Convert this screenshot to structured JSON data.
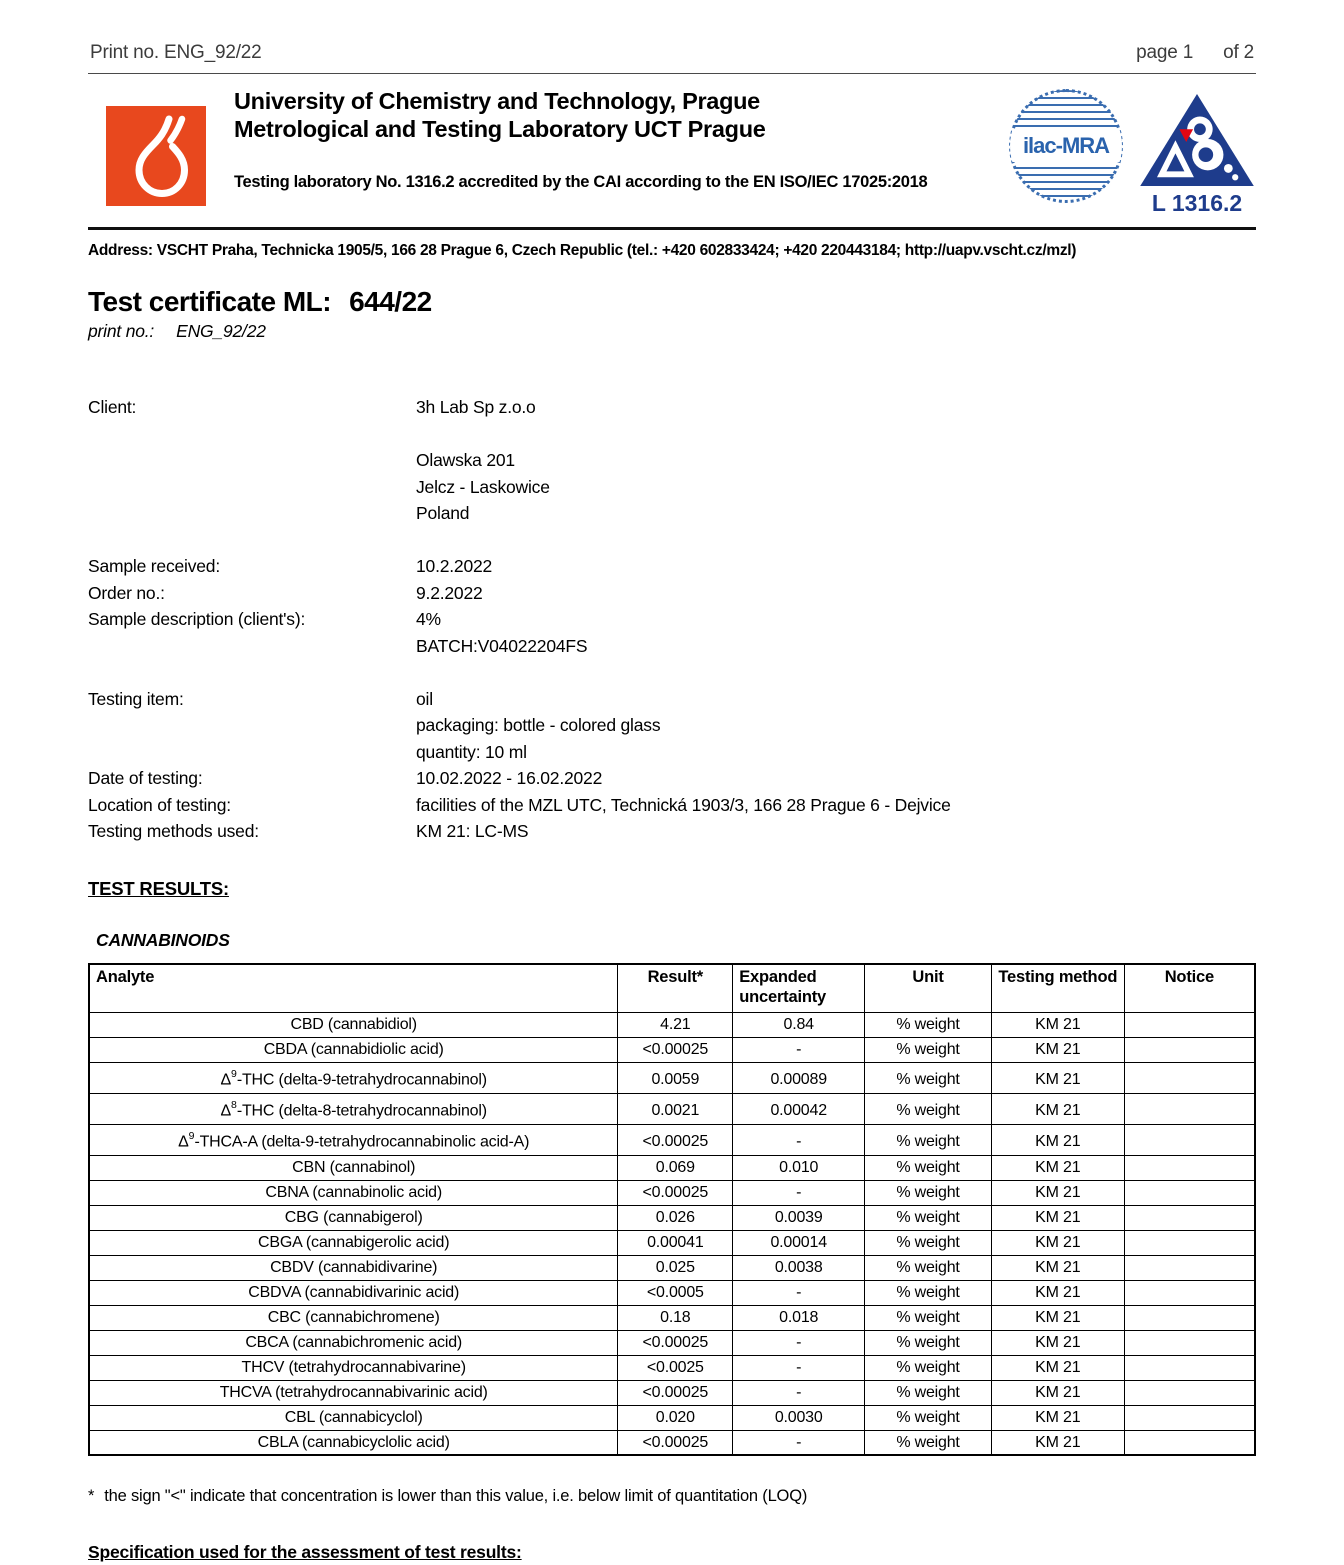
{
  "page_header": {
    "print_no": "Print no. ENG_92/22",
    "page_label": "page 1",
    "of_label": "of 2"
  },
  "lab_header": {
    "line1": "University of Chemistry and Technology, Prague",
    "line2": "Metrological and Testing Laboratory UCT Prague",
    "accreditation": "Testing laboratory No. 1316.2 accredited by the CAI according to the EN ISO/IEC 17025:2018",
    "ilac_label": "ilac-MRA",
    "cai_label": "L 1316.2"
  },
  "address": "Address: VSCHT Praha, Technicka 1905/5, 166 28 Prague 6, Czech Republic (tel.: +420 602833424; +420 220443184; http://uapv.vscht.cz/mzl)",
  "certificate": {
    "title_label": "Test certificate ML:",
    "title_value": "644/22",
    "print_no_label": "print no.:",
    "print_no_value": "ENG_92/22"
  },
  "details": {
    "client_label": "Client:",
    "client_name": "3h Lab Sp z.o.o",
    "client_address_1": "Olawska 201",
    "client_address_2": "Jelcz - Laskowice",
    "client_address_3": "Poland",
    "sample_received_label": "Sample received:",
    "sample_received": "10.2.2022",
    "order_no_label": "Order no.:",
    "order_no": "9.2.2022",
    "sample_description_label": "Sample description (client's):",
    "sample_description": "4%",
    "batch": "BATCH:V04022204FS",
    "testing_item_label": "Testing item:",
    "testing_item": "oil",
    "packaging": "packaging: bottle - colored glass",
    "quantity": "quantity: 10 ml",
    "date_of_testing_label": "Date of testing:",
    "date_of_testing": "10.02.2022 - 16.02.2022",
    "location_label": "Location of testing:",
    "location": "facilities of the MZL UTC, Technická 1903/3, 166 28 Prague 6 - Dejvice",
    "methods_label": "Testing methods used:",
    "methods": "KM 21: LC-MS"
  },
  "results": {
    "section_title": "TEST RESULTS:",
    "group_title": "CANNABINOIDS",
    "columns": [
      "Analyte",
      "Result*",
      "Expanded uncertainty",
      "Unit",
      "Testing method",
      "Notice"
    ],
    "rows": [
      {
        "pre": "CBD (cannabidiol)",
        "sup": "",
        "post": "",
        "result": "4.21",
        "unc": "0.84",
        "unit": "% weight",
        "method": "KM 21",
        "notice": ""
      },
      {
        "pre": "CBDA (cannabidiolic acid)",
        "sup": "",
        "post": "",
        "result": "<0.00025",
        "unc": "-",
        "unit": "% weight",
        "method": "KM 21",
        "notice": ""
      },
      {
        "pre": "Δ",
        "sup": "9",
        "post": "-THC (delta-9-tetrahydrocannabinol)",
        "result": "0.0059",
        "unc": "0.00089",
        "unit": "% weight",
        "method": "KM 21",
        "notice": ""
      },
      {
        "pre": "Δ",
        "sup": "8",
        "post": "-THC (delta-8-tetrahydrocannabinol)",
        "result": "0.0021",
        "unc": "0.00042",
        "unit": "% weight",
        "method": "KM 21",
        "notice": ""
      },
      {
        "pre": "Δ",
        "sup": "9",
        "post": "-THCA-A (delta-9-tetrahydrocannabinolic acid-A)",
        "result": "<0.00025",
        "unc": "-",
        "unit": "% weight",
        "method": "KM 21",
        "notice": ""
      },
      {
        "pre": "CBN (cannabinol)",
        "sup": "",
        "post": "",
        "result": "0.069",
        "unc": "0.010",
        "unit": "% weight",
        "method": "KM 21",
        "notice": ""
      },
      {
        "pre": "CBNA (cannabinolic acid)",
        "sup": "",
        "post": "",
        "result": "<0.00025",
        "unc": "-",
        "unit": "% weight",
        "method": "KM 21",
        "notice": ""
      },
      {
        "pre": "CBG (cannabigerol)",
        "sup": "",
        "post": "",
        "result": "0.026",
        "unc": "0.0039",
        "unit": "% weight",
        "method": "KM 21",
        "notice": ""
      },
      {
        "pre": "CBGA (cannabigerolic acid)",
        "sup": "",
        "post": "",
        "result": "0.00041",
        "unc": "0.00014",
        "unit": "% weight",
        "method": "KM 21",
        "notice": ""
      },
      {
        "pre": "CBDV (cannabidivarine)",
        "sup": "",
        "post": "",
        "result": "0.025",
        "unc": "0.0038",
        "unit": "% weight",
        "method": "KM 21",
        "notice": ""
      },
      {
        "pre": "CBDVA (cannabidivarinic acid)",
        "sup": "",
        "post": "",
        "result": "<0.0005",
        "unc": "-",
        "unit": "% weight",
        "method": "KM 21",
        "notice": ""
      },
      {
        "pre": "CBC (cannabichromene)",
        "sup": "",
        "post": "",
        "result": "0.18",
        "unc": "0.018",
        "unit": "% weight",
        "method": "KM 21",
        "notice": ""
      },
      {
        "pre": "CBCA (cannabichromenic acid)",
        "sup": "",
        "post": "",
        "result": "<0.00025",
        "unc": "-",
        "unit": "% weight",
        "method": "KM 21",
        "notice": ""
      },
      {
        "pre": "THCV (tetrahydrocannabivarine)",
        "sup": "",
        "post": "",
        "result": "<0.0025",
        "unc": "-",
        "unit": "% weight",
        "method": "KM 21",
        "notice": ""
      },
      {
        "pre": "THCVA (tetrahydrocannabivarinic acid)",
        "sup": "",
        "post": "",
        "result": "<0.00025",
        "unc": "-",
        "unit": "% weight",
        "method": "KM 21",
        "notice": ""
      },
      {
        "pre": "CBL (cannabicyclol)",
        "sup": "",
        "post": "",
        "result": "0.020",
        "unc": "0.0030",
        "unit": "% weight",
        "method": "KM 21",
        "notice": ""
      },
      {
        "pre": "CBLA (cannabicyclolic acid)",
        "sup": "",
        "post": "",
        "result": "<0.00025",
        "unc": "-",
        "unit": "% weight",
        "method": "KM 21",
        "notice": ""
      }
    ]
  },
  "footnote": {
    "marker": "*",
    "text": "the sign \"<\" indicate that concentration is lower than this value, i.e. below limit of quantitation (LOQ)"
  },
  "specification_heading": "Specification used for the assessment of test results:",
  "colors": {
    "logo_orange": "#e8481e",
    "ilac_blue": "#2a63ad",
    "cai_navy": "#1e3c8c",
    "cai_red": "#e30613"
  }
}
